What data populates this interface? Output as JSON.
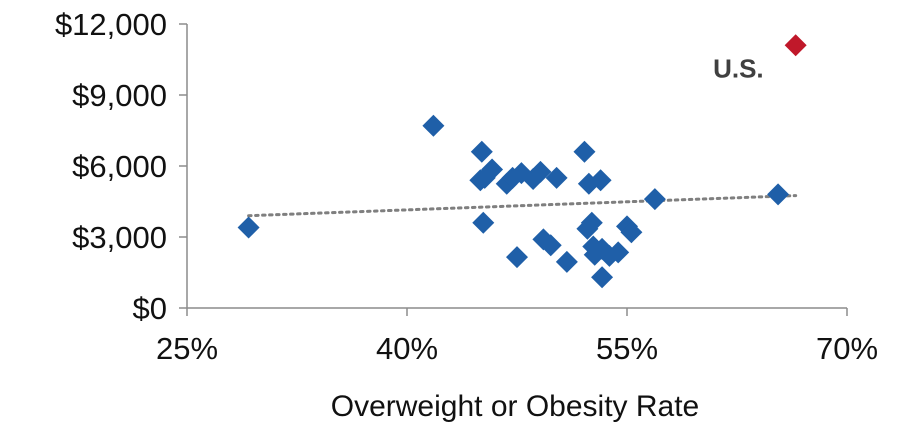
{
  "chart_data": {
    "type": "scatter",
    "title": "",
    "xlabel": "Overweight or Obesity Rate",
    "ylabel": "",
    "xlim": [
      25,
      70
    ],
    "ylim": [
      0,
      12000
    ],
    "x_ticks": [
      25,
      40,
      55,
      70
    ],
    "x_tick_labels": [
      "25%",
      "40%",
      "55%",
      "70%"
    ],
    "y_ticks": [
      0,
      3000,
      6000,
      9000,
      12000
    ],
    "y_tick_labels": [
      "$0",
      "$3,000",
      "$6,000",
      "$9,000",
      "$12,000"
    ],
    "grid": false,
    "legend": "none",
    "series": [
      {
        "color": "#1f5fa8",
        "marker": "diamond",
        "points": [
          {
            "x": 29.2,
            "y": 3400
          },
          {
            "x": 41.8,
            "y": 7700
          },
          {
            "x": 45.1,
            "y": 6600
          },
          {
            "x": 45.0,
            "y": 5400
          },
          {
            "x": 45.3,
            "y": 5500
          },
          {
            "x": 45.8,
            "y": 5850
          },
          {
            "x": 45.2,
            "y": 3600
          },
          {
            "x": 46.8,
            "y": 5250
          },
          {
            "x": 47.2,
            "y": 5500
          },
          {
            "x": 47.8,
            "y": 5700
          },
          {
            "x": 48.6,
            "y": 5450
          },
          {
            "x": 49.1,
            "y": 5750
          },
          {
            "x": 50.2,
            "y": 5500
          },
          {
            "x": 47.5,
            "y": 2150
          },
          {
            "x": 49.3,
            "y": 2900
          },
          {
            "x": 49.8,
            "y": 2650
          },
          {
            "x": 50.9,
            "y": 1950
          },
          {
            "x": 52.1,
            "y": 6600
          },
          {
            "x": 52.4,
            "y": 5250
          },
          {
            "x": 53.2,
            "y": 5400
          },
          {
            "x": 52.3,
            "y": 3350
          },
          {
            "x": 52.6,
            "y": 3600
          },
          {
            "x": 52.7,
            "y": 2600
          },
          {
            "x": 53.3,
            "y": 2500
          },
          {
            "x": 52.8,
            "y": 2250
          },
          {
            "x": 53.8,
            "y": 2200
          },
          {
            "x": 54.4,
            "y": 2350
          },
          {
            "x": 53.3,
            "y": 1300
          },
          {
            "x": 55.0,
            "y": 3450
          },
          {
            "x": 55.3,
            "y": 3200
          },
          {
            "x": 56.9,
            "y": 4600
          },
          {
            "x": 65.3,
            "y": 4800
          }
        ]
      },
      {
        "color": "#c0182a",
        "marker": "diamond",
        "points": [
          {
            "x": 66.5,
            "y": 11100
          }
        ]
      }
    ],
    "trendline": {
      "style": "dotted",
      "color": "#7f7f7f",
      "x": [
        29.2,
        66.5
      ],
      "y": [
        3900,
        4750
      ]
    },
    "annotations": [
      {
        "text": "U.S.",
        "x": 66.5,
        "y": 11100
      }
    ]
  }
}
